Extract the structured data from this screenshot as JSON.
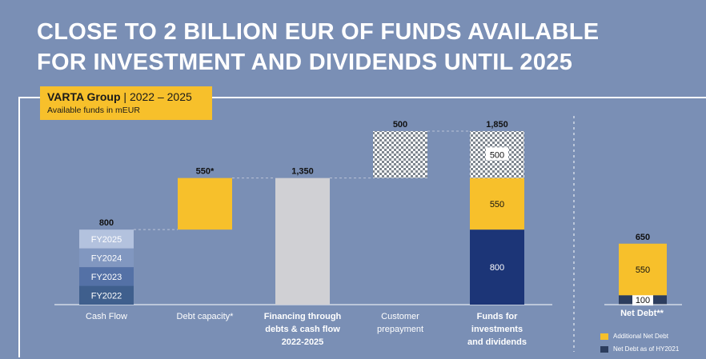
{
  "title": {
    "line1": "CLOSE TO 2 BILLION EUR OF FUNDS AVAILABLE",
    "line2": "FOR INVESTMENT AND DIVIDENDS UNTIL 2025"
  },
  "header": {
    "company": "VARTA Group",
    "separator": "|",
    "period": "2022 – 2025",
    "subtitle": "Available funds in mEUR"
  },
  "chart_data": [
    {
      "type": "bar",
      "subtype": "waterfall",
      "title": "VARTA Group | 2022 – 2025",
      "unit": "mEUR",
      "ylim": [
        0,
        1850
      ],
      "categories": [
        {
          "lines": [
            "Cash Flow"
          ],
          "bold": false
        },
        {
          "lines": [
            "Debt capacity*"
          ],
          "bold": false
        },
        {
          "lines": [
            "Financing through",
            "debts & cash flow",
            "2022-2025"
          ],
          "bold": true
        },
        {
          "lines": [
            "Customer",
            "prepayment"
          ],
          "bold": false
        },
        {
          "lines": [
            "Funds for",
            "investments",
            "and dividends"
          ],
          "bold": true
        }
      ],
      "bars": [
        {
          "base": 0,
          "total_label": "800",
          "segments": [
            {
              "label": "FY2022",
              "value": 200,
              "color": "#3f5f8d"
            },
            {
              "label": "FY2023",
              "value": 200,
              "color": "#5471a6"
            },
            {
              "label": "FY2024",
              "value": 200,
              "color": "#8197c0"
            },
            {
              "label": "FY2025",
              "value": 200,
              "color": "#b3c2de"
            }
          ]
        },
        {
          "base": 800,
          "total_label": "550*",
          "segments": [
            {
              "label": "",
              "value": 550,
              "color": "#f7c02b"
            }
          ]
        },
        {
          "base": 0,
          "total_label": "1,350",
          "segments": [
            {
              "label": "",
              "value": 1350,
              "color": "#d0d0d4"
            }
          ]
        },
        {
          "base": 1350,
          "total_label": "500",
          "segments": [
            {
              "label": "",
              "value": 500,
              "pattern": "checker"
            }
          ]
        },
        {
          "base": 0,
          "total_label": "1,850",
          "segments": [
            {
              "label": "800",
              "value": 800,
              "color": "#1c3577"
            },
            {
              "label": "550",
              "value": 550,
              "color": "#f7c02b"
            },
            {
              "label": "500",
              "value": 500,
              "pattern": "checker"
            }
          ]
        }
      ]
    },
    {
      "type": "bar",
      "subtype": "stacked",
      "title": "Net Debt**",
      "unit": "mEUR",
      "ylim": [
        0,
        1850
      ],
      "total_label": "650",
      "segments": [
        {
          "label": "100",
          "value": 100,
          "series": "Net Debt as of HY2021",
          "color": "#2c3d5e"
        },
        {
          "label": "550",
          "value": 550,
          "series": "Additional Net Debt",
          "color": "#f7c02b"
        }
      ],
      "legend": [
        {
          "name": "Additional Net Debt",
          "color": "#f7c02b"
        },
        {
          "name": "Net Debt as of HY2021",
          "color": "#2c3d5e"
        }
      ]
    }
  ]
}
